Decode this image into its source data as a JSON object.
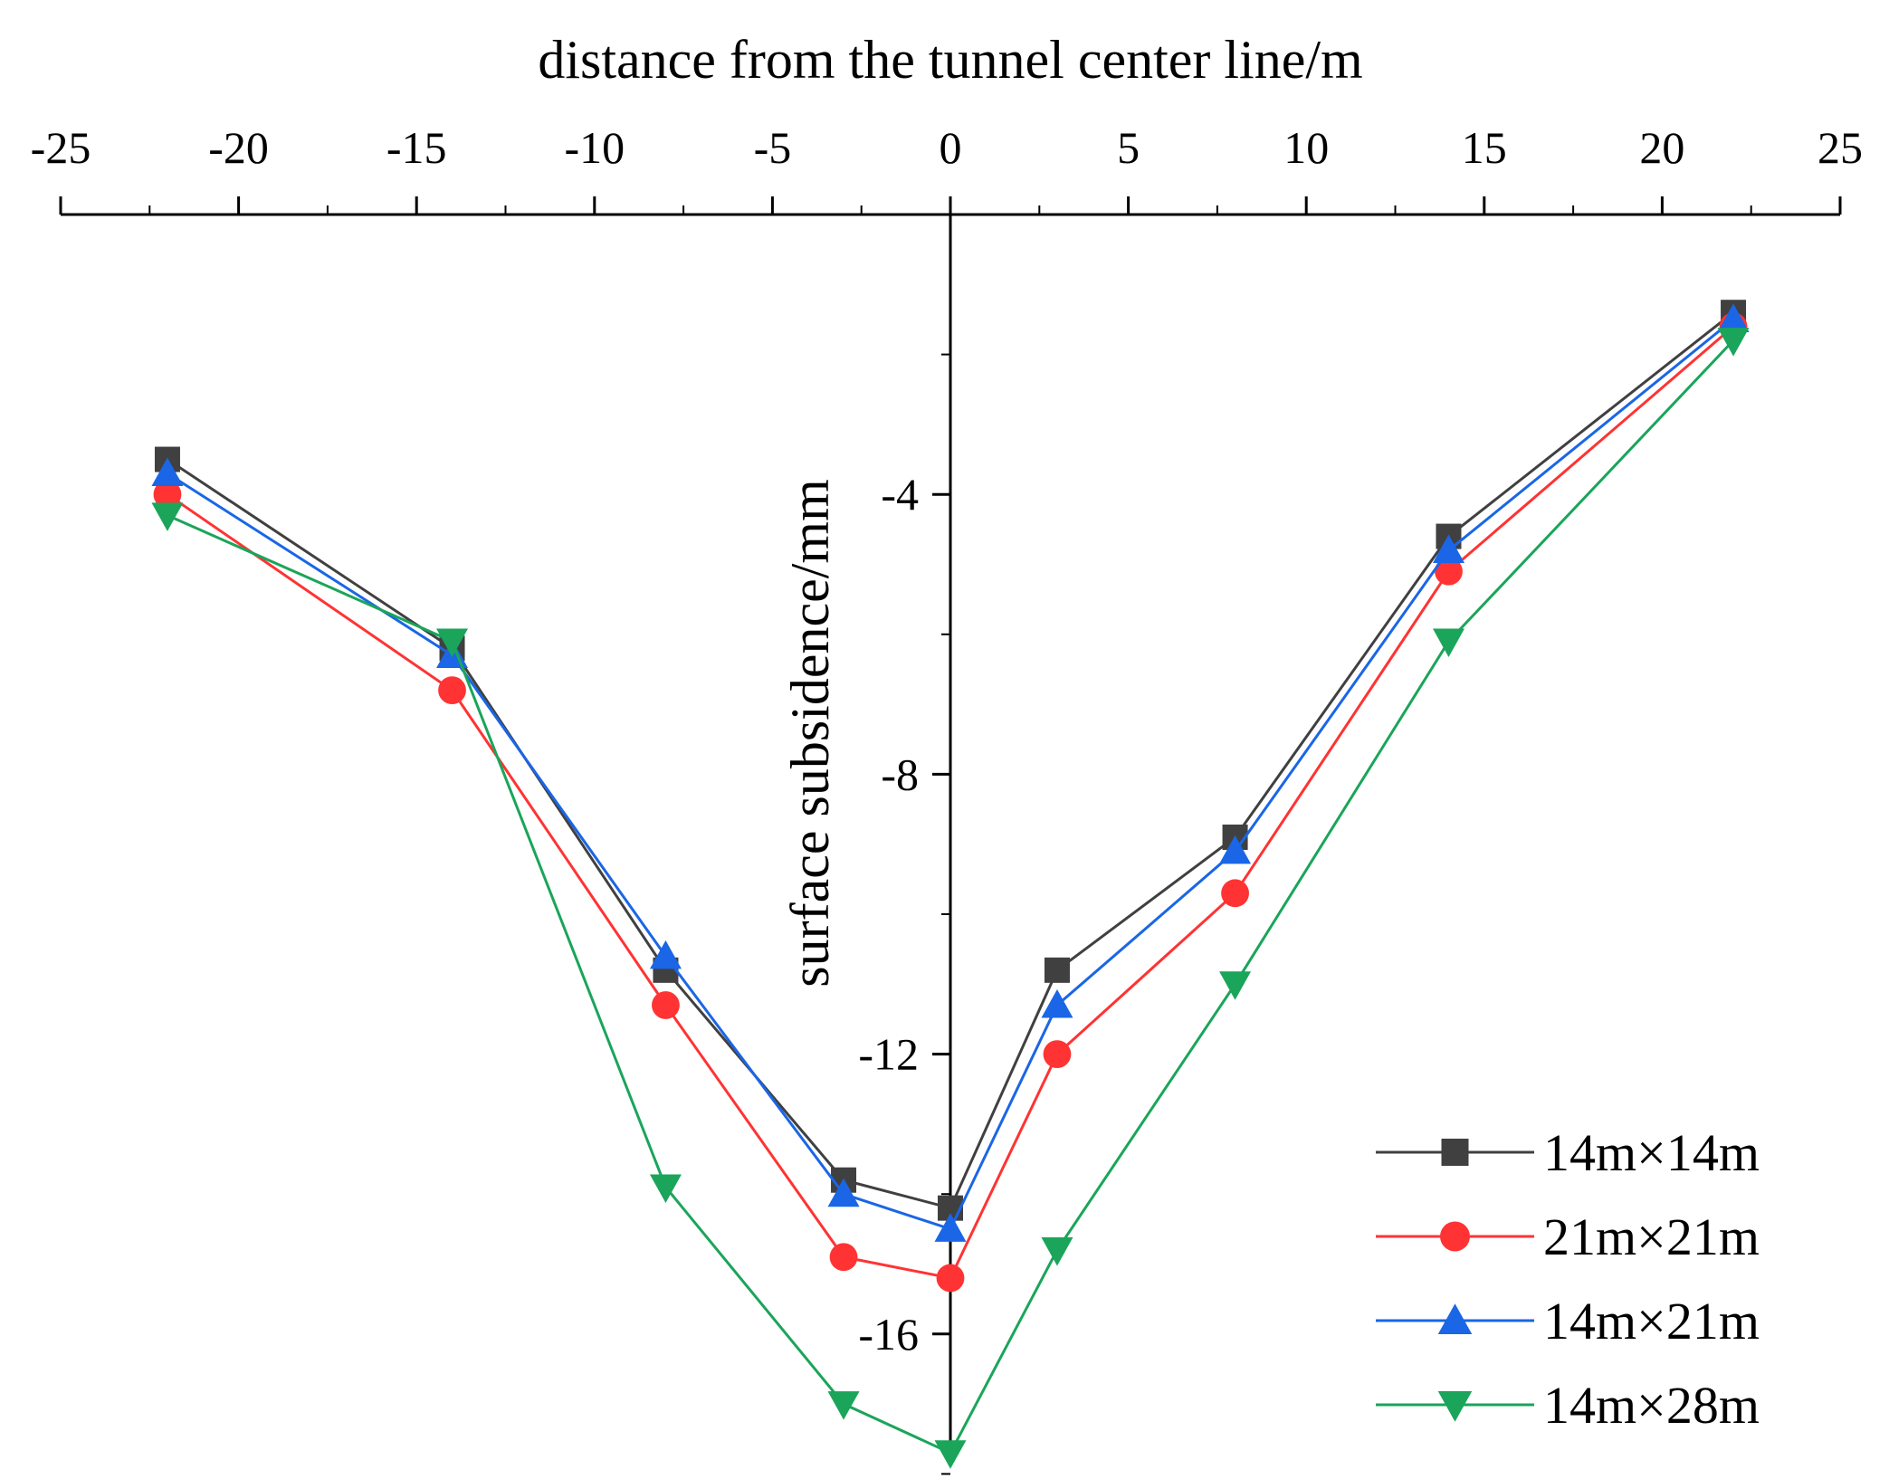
{
  "chart_data": {
    "type": "line",
    "xlabel": "distance from the tunnel center line/m",
    "ylabel": "surface subsidence/mm",
    "xlim": [
      -25,
      25
    ],
    "ylim": [
      -18.8,
      0
    ],
    "x_ticks": [
      "-25",
      "-20",
      "-15",
      "-10",
      "-5",
      "0",
      "5",
      "10",
      "15",
      "20",
      "25"
    ],
    "x_tick_values": [
      -25,
      -20,
      -15,
      -10,
      -5,
      0,
      5,
      10,
      15,
      20,
      25
    ],
    "y_ticks": [
      "-4",
      "-8",
      "-12",
      "-16"
    ],
    "y_tick_values": [
      -4,
      -8,
      -12,
      -16
    ],
    "x_axis_position": "top",
    "y_axis_position": "x=0",
    "legend_position": "bottom-right",
    "grid": false,
    "x": [
      -22,
      -14,
      -8,
      -3,
      0,
      3,
      8,
      14,
      22
    ],
    "series": [
      {
        "name": "14m×14m",
        "color": "#404040",
        "marker": "square",
        "values": [
          -3.5,
          -6.2,
          -10.8,
          -13.8,
          -14.2,
          -10.8,
          -8.9,
          -4.6,
          -1.4
        ]
      },
      {
        "name": "21m×21m",
        "color": "#ff3333",
        "marker": "circle",
        "values": [
          -4.0,
          -6.8,
          -11.3,
          -14.9,
          -15.2,
          -12.0,
          -9.7,
          -5.1,
          -1.6
        ]
      },
      {
        "name": "14m×21m",
        "color": "#1a66e6",
        "marker": "triangle-up",
        "values": [
          -3.7,
          -6.3,
          -10.6,
          -14.0,
          -14.5,
          -11.3,
          -9.1,
          -4.8,
          -1.5
        ]
      },
      {
        "name": "14m×28m",
        "color": "#1aa55a",
        "marker": "triangle-down",
        "values": [
          -4.3,
          -6.1,
          -13.9,
          -17.0,
          -17.7,
          -14.8,
          -11.0,
          -6.1,
          -1.8
        ]
      }
    ]
  }
}
